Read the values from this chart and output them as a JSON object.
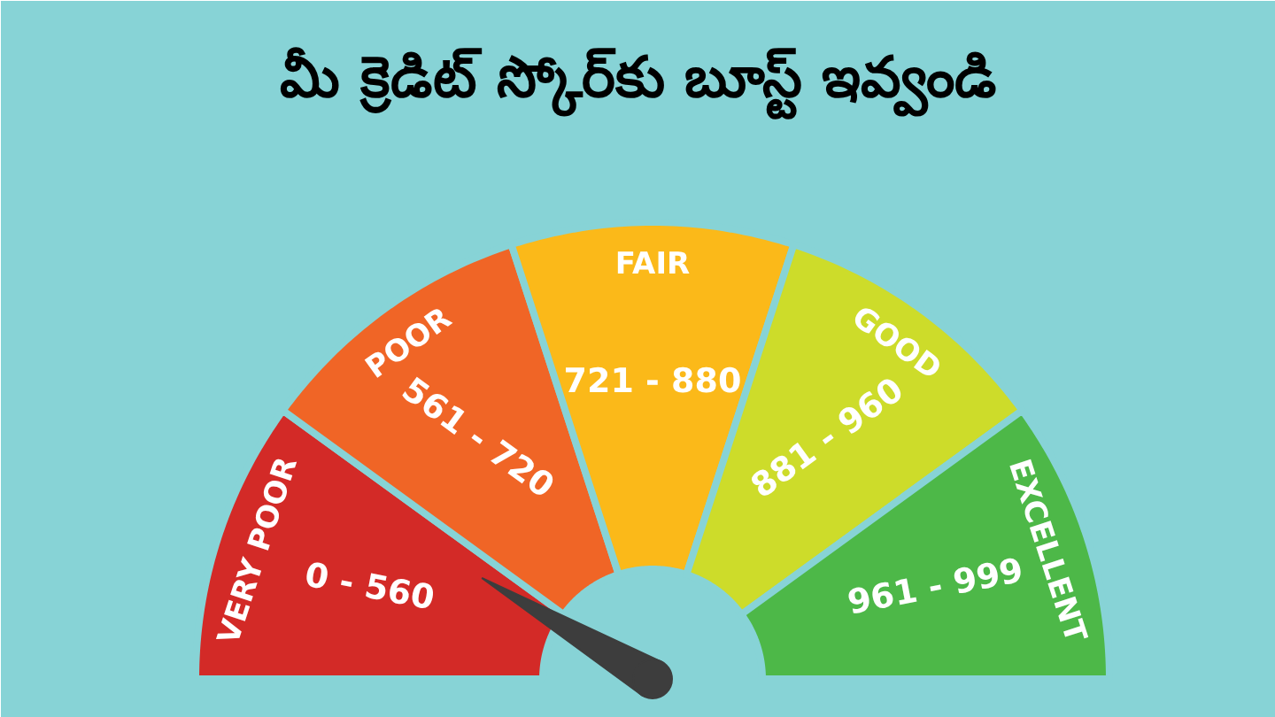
{
  "chart_data": {
    "type": "donut",
    "title": "మీ క్రెడిట్ స్కోర్‌కు బూస్ట్ ఇవ్వండి",
    "categories": [
      "VERY POOR",
      "POOR",
      "FAIR",
      "GOOD",
      "EXCELLENT"
    ],
    "values": [
      20,
      20,
      20,
      20,
      20
    ],
    "colors": [
      "#d32a27",
      "#f06526",
      "#fbb919",
      "#cddc2a",
      "#4db848"
    ],
    "annotations": [
      "0 - 560",
      "561 - 720",
      "721 - 880",
      "881 - 960",
      "961 - 999"
    ],
    "needle": "VERY POOR"
  }
}
